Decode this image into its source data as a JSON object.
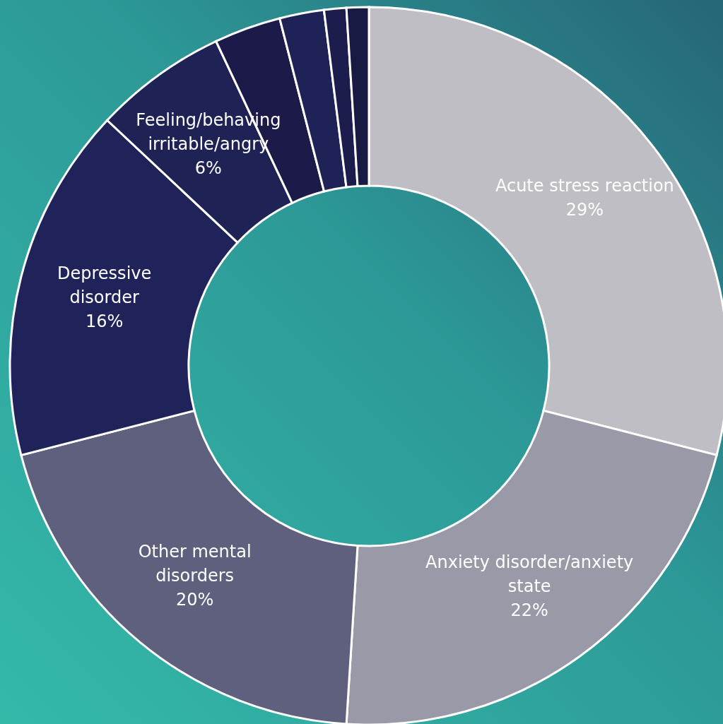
{
  "chart_data": {
    "type": "donut",
    "categories": [
      "Acute stress reaction",
      "Anxiety disorder/anxiety state",
      "Other mental disorders",
      "Depressive disorder",
      "Feeling/behaving irritable/angry",
      null,
      null,
      null,
      null
    ],
    "values": [
      29,
      22,
      20,
      16,
      6,
      3,
      2,
      1,
      1
    ],
    "colors": [
      "#bebec4",
      "#9a99a7",
      "#5f607e",
      "#20235a",
      "#1f2255",
      "#1b1a48",
      "#1f2257",
      "#1c1d4d",
      "#181a44"
    ],
    "value_labels": [
      "29%",
      "22%",
      "20%",
      "16%",
      "6%",
      null,
      null,
      null,
      null
    ]
  }
}
